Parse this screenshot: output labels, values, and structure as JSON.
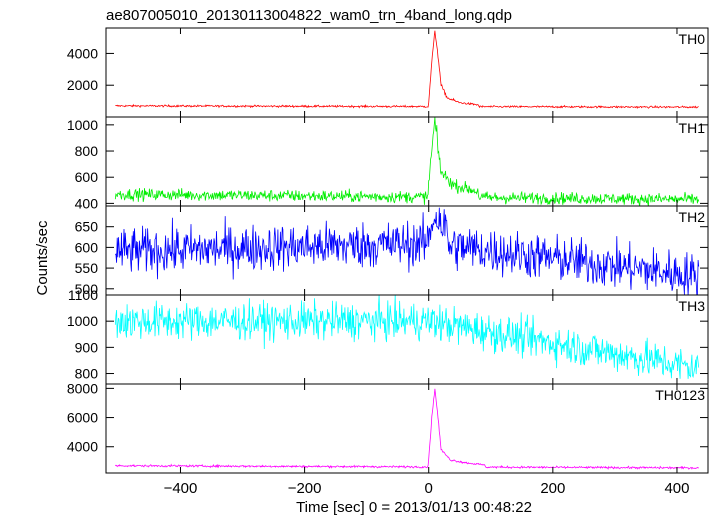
{
  "title": "ae807005010_20130113004822_wam0_trn_4band_long.qdp",
  "xlabel": "Time [sec] 0 = 2013/01/13 00:48:22",
  "ylabel": "Counts/sec",
  "x_ticks": [
    "−400",
    "−200",
    "0",
    "200",
    "400"
  ],
  "colors": {
    "TH0": "#ff0000",
    "TH1": "#00ee00",
    "TH2": "#0000ff",
    "TH3": "#00ffff",
    "TH0123": "#ff00ff"
  },
  "chart_data": {
    "type": "line",
    "xlim": [
      -520,
      450
    ],
    "x_tick_values": [
      -400,
      -200,
      0,
      200,
      400
    ],
    "time_range": [
      -505,
      435
    ],
    "panels": [
      {
        "name": "TH0",
        "ylim": [
          0,
          5600
        ],
        "y_ticks": [
          2000,
          4000
        ],
        "y_tick_labels": [
          "2000",
          "4000"
        ],
        "series": {
          "name": "TH0",
          "baseline_start": 700,
          "baseline_end": 620,
          "noise": 60,
          "burst": [
            [
              0,
              900
            ],
            [
              5,
              3500
            ],
            [
              10,
              5400
            ],
            [
              14,
              4200
            ],
            [
              20,
              2000
            ],
            [
              30,
              1200
            ],
            [
              50,
              900
            ],
            [
              80,
              760
            ]
          ]
        }
      },
      {
        "name": "TH1",
        "ylim": [
          380,
          1060
        ],
        "y_ticks": [
          400,
          600,
          800,
          1000
        ],
        "y_tick_labels": [
          "400",
          "600",
          "800",
          "1000"
        ],
        "series": {
          "name": "TH1",
          "baseline_start": 470,
          "baseline_end": 430,
          "noise": 45,
          "burst": [
            [
              0,
              560
            ],
            [
              5,
              800
            ],
            [
              10,
              1040
            ],
            [
              14,
              850
            ],
            [
              20,
              640
            ],
            [
              40,
              540
            ],
            [
              80,
              490
            ]
          ]
        }
      },
      {
        "name": "TH2",
        "ylim": [
          485,
          700
        ],
        "y_ticks": [
          500,
          550,
          600,
          650
        ],
        "y_tick_labels": [
          "500",
          "550",
          "600",
          "650"
        ],
        "series": {
          "name": "TH2",
          "baseline_start": 590,
          "baseline_mid": 610,
          "baseline_end": 530,
          "noise": 55,
          "burst": [
            [
              0,
              630
            ],
            [
              10,
              680
            ],
            [
              30,
              640
            ]
          ]
        }
      },
      {
        "name": "TH3",
        "ylim": [
          760,
          1100
        ],
        "y_ticks": [
          800,
          900,
          1000,
          1100
        ],
        "y_tick_labels": [
          "800",
          "900",
          "1000",
          "1100"
        ],
        "series": {
          "name": "TH3",
          "baseline_start": 1000,
          "baseline_mid": 1000,
          "baseline_end": 820,
          "noise": 70,
          "burst": []
        }
      },
      {
        "name": "TH0123",
        "ylim": [
          2200,
          8300
        ],
        "y_ticks": [
          4000,
          6000,
          8000
        ],
        "y_tick_labels": [
          "4000",
          "6000",
          "8000"
        ],
        "series": {
          "name": "TH0123",
          "baseline_start": 2700,
          "baseline_end": 2550,
          "noise": 70,
          "burst": [
            [
              0,
              3200
            ],
            [
              5,
              6000
            ],
            [
              10,
              8000
            ],
            [
              14,
              6400
            ],
            [
              20,
              3800
            ],
            [
              35,
              3100
            ],
            [
              60,
              2900
            ],
            [
              90,
              2750
            ]
          ]
        }
      }
    ]
  }
}
